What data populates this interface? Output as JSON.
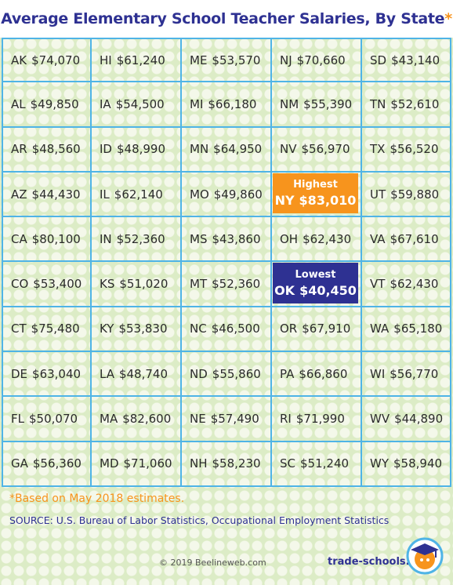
{
  "title": "Average Elementary School Teacher Salaries, By State",
  "title_asterisk": "*",
  "colors": {
    "title": "#2e3192",
    "accent": "#f7941d",
    "grid_line": "#4fb4e6",
    "highest_bg": "#f7941d",
    "lowest_bg": "#2e3192"
  },
  "highlights": {
    "highest": {
      "label": "Highest",
      "state": "NY",
      "value": "$83,010"
    },
    "lowest": {
      "label": "Lowest",
      "state": "OK",
      "value": "$40,450"
    }
  },
  "chart_data": {
    "type": "table",
    "title": "Average Elementary School Teacher Salaries, By State",
    "columns": [
      [
        {
          "state": "AK",
          "value": "$74,070"
        },
        {
          "state": "AL",
          "value": "$49,850"
        },
        {
          "state": "AR",
          "value": "$48,560"
        },
        {
          "state": "AZ",
          "value": "$44,430"
        },
        {
          "state": "CA",
          "value": "$80,100"
        },
        {
          "state": "CO",
          "value": "$53,400"
        },
        {
          "state": "CT",
          "value": "$75,480"
        },
        {
          "state": "DE",
          "value": "$63,040"
        },
        {
          "state": "FL",
          "value": "$50,070"
        },
        {
          "state": "GA",
          "value": "$56,360"
        }
      ],
      [
        {
          "state": "HI",
          "value": "$61,240"
        },
        {
          "state": "IA",
          "value": "$54,500"
        },
        {
          "state": "ID",
          "value": "$48,990"
        },
        {
          "state": "IL",
          "value": "$62,140"
        },
        {
          "state": "IN",
          "value": "$52,360"
        },
        {
          "state": "KS",
          "value": "$51,020"
        },
        {
          "state": "KY",
          "value": "$53,830"
        },
        {
          "state": "LA",
          "value": "$48,740"
        },
        {
          "state": "MA",
          "value": "$82,600"
        },
        {
          "state": "MD",
          "value": "$71,060"
        }
      ],
      [
        {
          "state": "ME",
          "value": "$53,570"
        },
        {
          "state": "MI",
          "value": "$66,180"
        },
        {
          "state": "MN",
          "value": "$64,950"
        },
        {
          "state": "MO",
          "value": "$49,860"
        },
        {
          "state": "MS",
          "value": "$43,860"
        },
        {
          "state": "MT",
          "value": "$52,360"
        },
        {
          "state": "NC",
          "value": "$46,500"
        },
        {
          "state": "ND",
          "value": "$55,860"
        },
        {
          "state": "NE",
          "value": "$57,490"
        },
        {
          "state": "NH",
          "value": "$58,230"
        }
      ],
      [
        {
          "state": "NJ",
          "value": "$70,660"
        },
        {
          "state": "NM",
          "value": "$55,390"
        },
        {
          "state": "NV",
          "value": "$56,970"
        },
        {
          "special": "highest"
        },
        {
          "state": "OH",
          "value": "$62,430"
        },
        {
          "special": "lowest"
        },
        {
          "state": "OR",
          "value": "$67,910"
        },
        {
          "state": "PA",
          "value": "$66,860"
        },
        {
          "state": "RI",
          "value": "$71,990"
        },
        {
          "state": "SC",
          "value": "$51,240"
        }
      ],
      [
        {
          "state": "SD",
          "value": "$43,140"
        },
        {
          "state": "TN",
          "value": "$52,610"
        },
        {
          "state": "TX",
          "value": "$56,520"
        },
        {
          "state": "UT",
          "value": "$59,880"
        },
        {
          "state": "VA",
          "value": "$67,610"
        },
        {
          "state": "VT",
          "value": "$62,430"
        },
        {
          "state": "WA",
          "value": "$65,180"
        },
        {
          "state": "WI",
          "value": "$56,770"
        },
        {
          "state": "WV",
          "value": "$44,890"
        },
        {
          "state": "WY",
          "value": "$58,940"
        }
      ]
    ]
  },
  "footnote": "*Based on May 2018 estimates.",
  "source": "SOURCE: U.S. Bureau of Labor Statistics, Occupational Employment Statistics",
  "copyright": "© 2019 Beelineweb.com",
  "brand": "trade-schools.net",
  "logo_icon": "graduation-cap-icon"
}
